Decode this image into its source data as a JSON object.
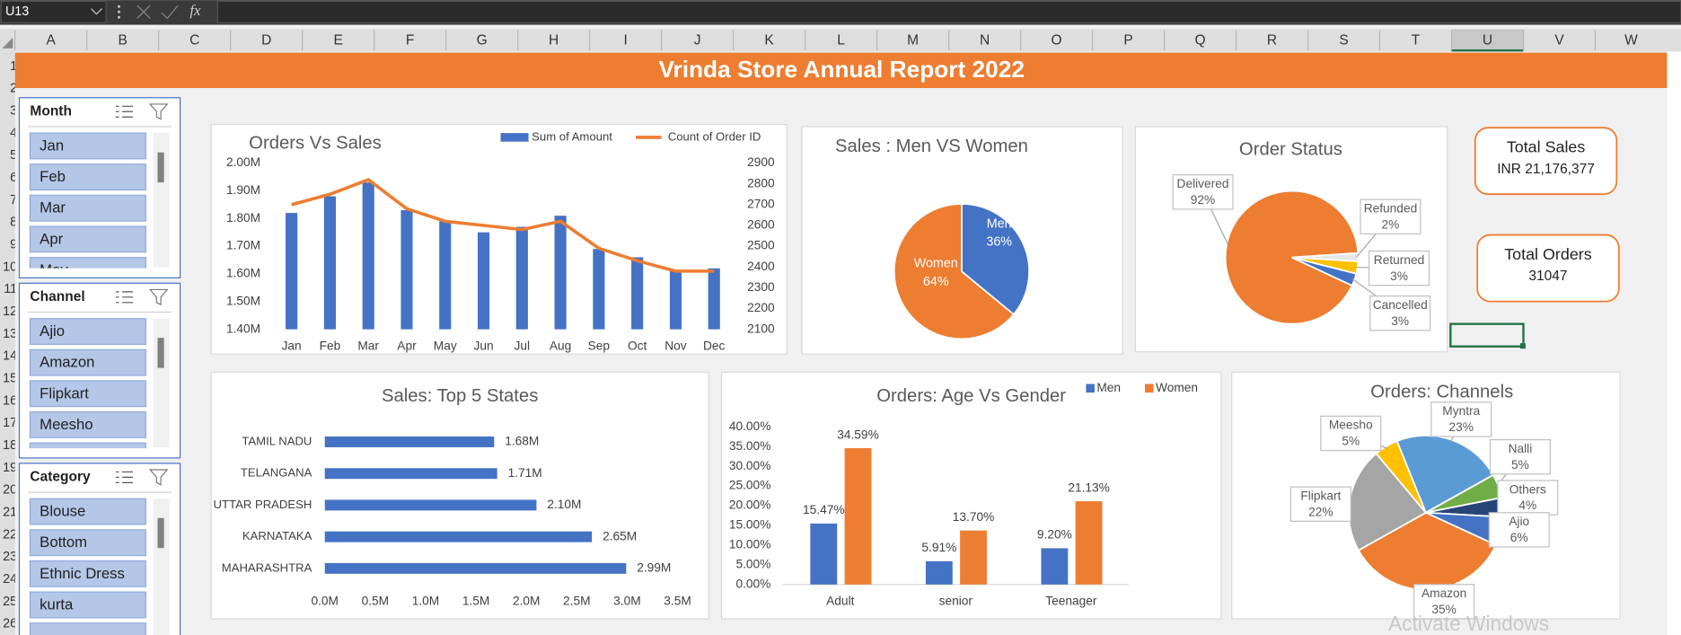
{
  "app": {
    "name_box": "U13",
    "fx": "fx",
    "columns": [
      "A",
      "B",
      "C",
      "D",
      "E",
      "F",
      "G",
      "H",
      "I",
      "J",
      "K",
      "L",
      "M",
      "N",
      "O",
      "P",
      "Q",
      "R",
      "S",
      "T",
      "U",
      "V",
      "W"
    ],
    "rows": [
      1,
      2,
      3,
      4,
      5,
      6,
      7,
      8,
      9,
      10,
      11,
      12,
      13,
      14,
      15,
      16,
      17,
      18,
      19,
      20,
      21,
      22,
      23,
      24,
      25,
      26
    ],
    "watermark": "Activate Windows"
  },
  "dashboard": {
    "title": "Vrinda Store Annual Report 2022"
  },
  "slicers": [
    {
      "title": "Month",
      "items": [
        "Jan",
        "Feb",
        "Mar",
        "Apr",
        "May"
      ]
    },
    {
      "title": "Channel",
      "items": [
        "Ajio",
        "Amazon",
        "Flipkart",
        "Meesho"
      ]
    },
    {
      "title": "Category",
      "items": [
        "Blouse",
        "Bottom",
        "Ethnic Dress",
        "kurta"
      ]
    }
  ],
  "kpis": [
    {
      "label": "Total Sales",
      "value": "INR 21,176,377"
    },
    {
      "label": "Total Orders",
      "value": 31047
    }
  ],
  "chart_data": [
    {
      "type": "bar",
      "title": "Orders Vs Sales",
      "categories": [
        "Jan",
        "Feb",
        "Mar",
        "Apr",
        "May",
        "Jun",
        "Jul",
        "Aug",
        "Sep",
        "Oct",
        "Nov",
        "Dec"
      ],
      "series": [
        {
          "name": "Sum of Amount",
          "color": "#4472c4",
          "values": [
            1820000,
            1880000,
            1930000,
            1830000,
            1790000,
            1750000,
            1770000,
            1810000,
            1690000,
            1660000,
            1610000,
            1620000
          ]
        },
        {
          "name": "Count of Order ID",
          "color": "#ed7d31",
          "type": "line",
          "axis": "y2",
          "values": [
            2700,
            2750,
            2820,
            2680,
            2620,
            2600,
            2580,
            2620,
            2490,
            2430,
            2380,
            2380
          ]
        }
      ],
      "ylim": [
        1400000,
        2000000
      ],
      "yticks": [
        {
          "value": 1400000,
          "label": "1.40M"
        },
        {
          "value": 1500000,
          "label": "1.50M"
        },
        {
          "value": 1600000,
          "label": "1.60M"
        },
        {
          "value": 1700000,
          "label": "1.70M"
        },
        {
          "value": 1800000,
          "label": "1.80M"
        },
        {
          "value": 1900000,
          "label": "1.90M"
        },
        {
          "value": 2000000,
          "label": "2.00M"
        }
      ],
      "y2lim": [
        2100,
        2900
      ],
      "y2ticks": [
        2100,
        2200,
        2300,
        2400,
        2500,
        2600,
        2700,
        2800,
        2900
      ],
      "legend": "top-right"
    },
    {
      "type": "pie",
      "title": "Sales : Men VS Women",
      "categories": [
        "Men",
        "Women"
      ],
      "values": [
        36,
        64
      ],
      "value_labels": [
        "36%",
        "64%"
      ],
      "colors": [
        "#4472c4",
        "#ed7d31"
      ]
    },
    {
      "type": "pie",
      "title": "Order Status",
      "categories": [
        "Delivered",
        "Refunded",
        "Returned",
        "Cancelled"
      ],
      "values": [
        92,
        2,
        3,
        3
      ],
      "value_labels": [
        "92%",
        "2%",
        "3%",
        "3%"
      ],
      "colors": [
        "#ed7d31",
        "#e7e6e6",
        "#ffc000",
        "#4472c4"
      ]
    },
    {
      "type": "bar",
      "orientation": "horizontal",
      "title": "Sales: Top 5 States",
      "categories": [
        "TAMIL NADU",
        "TELANGANA",
        "UTTAR PRADESH",
        "KARNATAKA",
        "MAHARASHTRA"
      ],
      "values": [
        1680000,
        1710000,
        2100000,
        2650000,
        2990000
      ],
      "value_labels": [
        "1.68M",
        "1.71M",
        "2.10M",
        "2.65M",
        "2.99M"
      ],
      "color": "#4472c4",
      "xlim": [
        0,
        3500000
      ],
      "xticks": [
        {
          "value": 0,
          "label": "0.0M"
        },
        {
          "value": 500000,
          "label": "0.5M"
        },
        {
          "value": 1000000,
          "label": "1.0M"
        },
        {
          "value": 1500000,
          "label": "1.5M"
        },
        {
          "value": 2000000,
          "label": "2.0M"
        },
        {
          "value": 2500000,
          "label": "2.5M"
        },
        {
          "value": 3000000,
          "label": "3.0M"
        },
        {
          "value": 3500000,
          "label": "3.5M"
        }
      ]
    },
    {
      "type": "bar",
      "title": "Orders: Age Vs Gender",
      "categories": [
        "Adult",
        "senior",
        "Teenager"
      ],
      "series": [
        {
          "name": "Men",
          "color": "#4472c4",
          "values": [
            15.47,
            5.91,
            9.2
          ],
          "value_labels": [
            "15.47%",
            "5.91%",
            "9.20%"
          ]
        },
        {
          "name": "Women",
          "color": "#ed7d31",
          "values": [
            34.59,
            13.7,
            21.13
          ],
          "value_labels": [
            "34.59%",
            "13.70%",
            "21.13%"
          ]
        }
      ],
      "ylim": [
        0,
        40
      ],
      "yticks": [
        {
          "value": 0,
          "label": "0.00%"
        },
        {
          "value": 5,
          "label": "5.00%"
        },
        {
          "value": 10,
          "label": "10.00%"
        },
        {
          "value": 15,
          "label": "15.00%"
        },
        {
          "value": 20,
          "label": "20.00%"
        },
        {
          "value": 25,
          "label": "25.00%"
        },
        {
          "value": 30,
          "label": "30.00%"
        },
        {
          "value": 35,
          "label": "35.00%"
        },
        {
          "value": 40,
          "label": "40.00%"
        }
      ],
      "legend": "top-right"
    },
    {
      "type": "pie",
      "title": "Orders: Channels",
      "categories": [
        "Myntra",
        "Nalli",
        "Others",
        "Ajio",
        "Amazon",
        "Flipkart",
        "Meesho"
      ],
      "values": [
        23,
        5,
        4,
        6,
        35,
        22,
        5
      ],
      "value_labels": [
        "23%",
        "5%",
        "4%",
        "6%",
        "35%",
        "22%",
        "5%"
      ],
      "colors": [
        "#5b9bd5",
        "#70ad47",
        "#264478",
        "#4472c4",
        "#ed7d31",
        "#a5a5a5",
        "#ffc000"
      ]
    }
  ]
}
